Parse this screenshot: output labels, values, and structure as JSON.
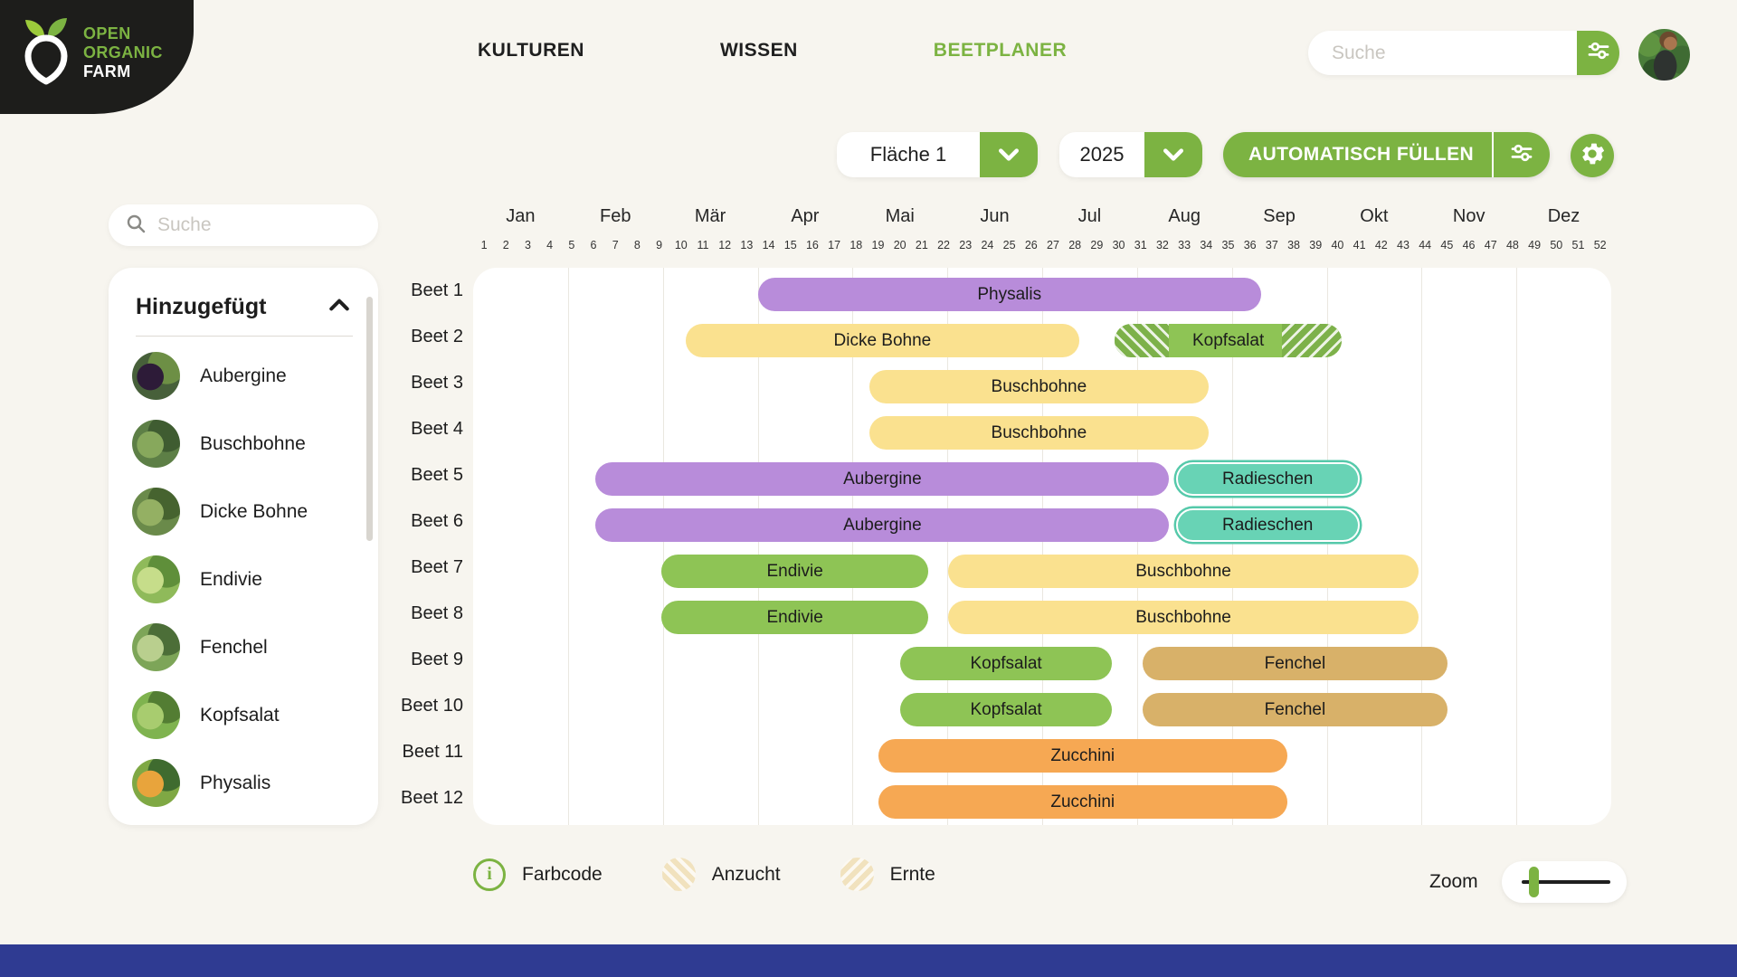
{
  "header": {
    "logo": {
      "line1": "OPEN",
      "line2": "ORGANIC",
      "line3": "FARM"
    },
    "nav": [
      {
        "label": "KULTUREN",
        "active": false
      },
      {
        "label": "WISSEN",
        "active": false
      },
      {
        "label": "BEETPLANER",
        "active": true
      }
    ],
    "search_placeholder": "Suche"
  },
  "toolbar": {
    "area_select": "Fläche 1",
    "year_select": "2025",
    "autofill_label": "AUTOMATISCH FÜLLEN"
  },
  "sidebar": {
    "search_placeholder": "Suche",
    "panel_title": "Hinzugefügt",
    "items": [
      {
        "label": "Aubergine",
        "photo": "aubergine-photo",
        "colors": [
          "#47603a",
          "#2d1b38",
          "#6d8f45"
        ]
      },
      {
        "label": "Buschbohne",
        "photo": "buschbohne-photo",
        "colors": [
          "#5d7f46",
          "#87a85c",
          "#3f5c31"
        ]
      },
      {
        "label": "Dicke Bohne",
        "photo": "dicke-bohne-photo",
        "colors": [
          "#6a8a4a",
          "#94b063",
          "#46632f"
        ]
      },
      {
        "label": "Endivie",
        "photo": "endivie-photo",
        "colors": [
          "#8fba5a",
          "#c6dd8a",
          "#5f8f3a"
        ]
      },
      {
        "label": "Fenchel",
        "photo": "fenchel-photo",
        "colors": [
          "#7da558",
          "#b9cf8e",
          "#4c6e38"
        ]
      },
      {
        "label": "Kopfsalat",
        "photo": "kopfsalat-photo",
        "colors": [
          "#7fb34f",
          "#a8cc6f",
          "#537d33"
        ]
      },
      {
        "label": "Physalis",
        "photo": "physalis-photo",
        "colors": [
          "#7fa844",
          "#e8a43c",
          "#3f6b2f"
        ]
      },
      {
        "label": "",
        "photo": "clipped-photo",
        "colors": [
          "#6f9a4a",
          "#8fb763",
          "#4a6b34"
        ]
      }
    ]
  },
  "chart": {
    "type": "gantt",
    "months": [
      "Jan",
      "Feb",
      "Mär",
      "Apr",
      "Mai",
      "Jun",
      "Jul",
      "Aug",
      "Sep",
      "Okt",
      "Nov",
      "Dez"
    ],
    "weeks": [
      1,
      2,
      3,
      4,
      5,
      6,
      7,
      8,
      9,
      10,
      11,
      12,
      13,
      14,
      15,
      16,
      17,
      18,
      19,
      20,
      21,
      22,
      23,
      24,
      25,
      26,
      27,
      28,
      29,
      30,
      31,
      32,
      33,
      34,
      35,
      36,
      37,
      38,
      39,
      40,
      41,
      42,
      43,
      44,
      45,
      46,
      47,
      48,
      49,
      50,
      51,
      52
    ],
    "weeks_total": 52,
    "rows": [
      {
        "label": "Beet 1",
        "bars": [
          {
            "name": "Physalis",
            "start": 13.0,
            "end": 36.0,
            "color": "#b88cda"
          }
        ]
      },
      {
        "label": "Beet 2",
        "bars": [
          {
            "name": "Dicke Bohne",
            "start": 9.7,
            "end": 27.7,
            "color": "#fae18f"
          },
          {
            "name": "Kopfsalat",
            "start": 29.3,
            "end": 39.7,
            "color": "#8ec455",
            "anzucht_weeks": 2.5,
            "ernte_weeks": 2.75
          }
        ]
      },
      {
        "label": "Beet 3",
        "bars": [
          {
            "name": "Buschbohne",
            "start": 18.1,
            "end": 33.6,
            "color": "#fae18f"
          }
        ]
      },
      {
        "label": "Beet 4",
        "bars": [
          {
            "name": "Buschbohne",
            "start": 18.1,
            "end": 33.6,
            "color": "#fae18f"
          }
        ]
      },
      {
        "label": "Beet 5",
        "bars": [
          {
            "name": "Aubergine",
            "start": 5.6,
            "end": 31.8,
            "color": "#b88cda"
          },
          {
            "name": "Radieschen",
            "start": 32.1,
            "end": 40.5,
            "color": "#68d3b5",
            "outlined": true
          }
        ]
      },
      {
        "label": "Beet 6",
        "bars": [
          {
            "name": "Aubergine",
            "start": 5.6,
            "end": 31.8,
            "color": "#b88cda"
          },
          {
            "name": "Radieschen",
            "start": 32.1,
            "end": 40.5,
            "color": "#68d3b5",
            "outlined": true
          }
        ]
      },
      {
        "label": "Beet 7",
        "bars": [
          {
            "name": "Endivie",
            "start": 8.6,
            "end": 20.8,
            "color": "#8ec455"
          },
          {
            "name": "Buschbohne",
            "start": 21.7,
            "end": 43.2,
            "color": "#fae18f"
          }
        ]
      },
      {
        "label": "Beet 8",
        "bars": [
          {
            "name": "Endivie",
            "start": 8.6,
            "end": 20.8,
            "color": "#8ec455"
          },
          {
            "name": "Buschbohne",
            "start": 21.7,
            "end": 43.2,
            "color": "#fae18f"
          }
        ]
      },
      {
        "label": "Beet 9",
        "bars": [
          {
            "name": "Kopfsalat",
            "start": 19.5,
            "end": 29.2,
            "color": "#8ec455"
          },
          {
            "name": "Fenchel",
            "start": 30.6,
            "end": 44.5,
            "color": "#d8b169"
          }
        ]
      },
      {
        "label": "Beet 10",
        "bars": [
          {
            "name": "Kopfsalat",
            "start": 19.5,
            "end": 29.2,
            "color": "#8ec455"
          },
          {
            "name": "Fenchel",
            "start": 30.6,
            "end": 44.5,
            "color": "#d8b169"
          }
        ]
      },
      {
        "label": "Beet 11",
        "bars": [
          {
            "name": "Zucchini",
            "start": 18.5,
            "end": 37.2,
            "color": "#f6a853"
          }
        ]
      },
      {
        "label": "Beet 12",
        "bars": [
          {
            "name": "Zucchini",
            "start": 18.5,
            "end": 37.2,
            "color": "#f6a853"
          }
        ]
      }
    ]
  },
  "legend": {
    "farbcode_label": "Farbcode",
    "anzucht_label": "Anzucht",
    "ernte_label": "Ernte"
  },
  "zoom_control": {
    "label": "Zoom"
  },
  "colors": {
    "accent_green": "#7cb342",
    "logo_bg": "#1d1d1b",
    "page_bg": "#f7f5ef",
    "bar_purple": "#b88cda",
    "bar_yellow": "#fae18f",
    "bar_green": "#8ec455",
    "bar_teal": "#68d3b5",
    "bar_tan": "#d8b169",
    "bar_orange": "#f6a853",
    "hatch_green": "#7db14a",
    "teal_outline": "#55c9aa",
    "footer_blue": "#2f3b92"
  }
}
